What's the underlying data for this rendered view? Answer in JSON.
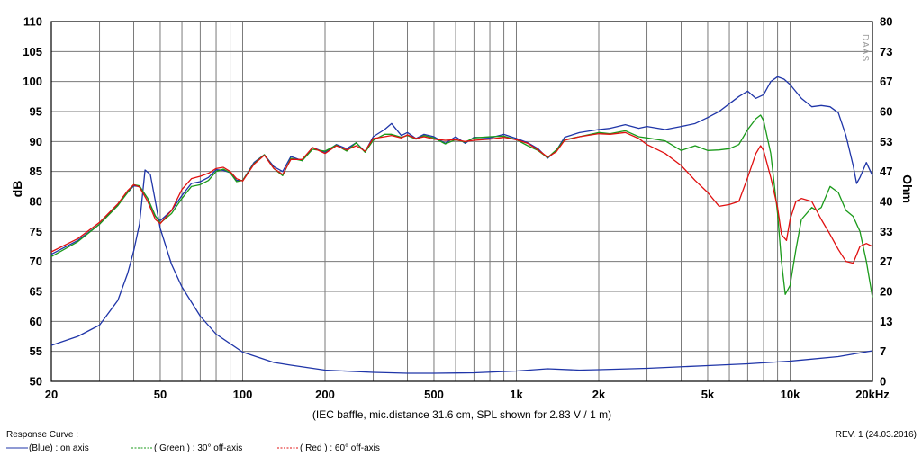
{
  "chart_data": {
    "type": "line",
    "caption": "(IEC baffle, mic.distance 31.6 cm, SPL shown for 2.83 V / 1 m)",
    "watermark": "DAAS",
    "x_axis": {
      "scale": "log",
      "range": [
        20,
        20000
      ],
      "tick_labels": [
        {
          "value": 20,
          "label": "20"
        },
        {
          "value": 50,
          "label": "50"
        },
        {
          "value": 100,
          "label": "100"
        },
        {
          "value": 200,
          "label": "200"
        },
        {
          "value": 500,
          "label": "500"
        },
        {
          "value": 1000,
          "label": "1k"
        },
        {
          "value": 2000,
          "label": "2k"
        },
        {
          "value": 5000,
          "label": "5k"
        },
        {
          "value": 10000,
          "label": "10k"
        },
        {
          "value": 20000,
          "label": "20kHz"
        }
      ]
    },
    "y_axis_left": {
      "label": "dB",
      "range": [
        50,
        110
      ],
      "ticks": [
        50,
        55,
        60,
        65,
        70,
        75,
        80,
        85,
        90,
        95,
        100,
        105,
        110
      ]
    },
    "y_axis_right": {
      "label": "Ohm",
      "range": [
        0,
        80
      ],
      "ticks": [
        "0",
        "7",
        "13",
        "20",
        "27",
        "33",
        "40",
        "47",
        "53",
        "60",
        "67",
        "73",
        "80"
      ]
    },
    "grid": true,
    "legend": {
      "title": "Response Curve :",
      "entries": [
        {
          "text": "(Blue)  : on axis",
          "color": "#1f35a8"
        },
        {
          "text": "( Green ) : 30° off-axis",
          "color": "#1a9a1a"
        },
        {
          "text": "( Red ) : 60° off-axis",
          "color": "#e01010"
        }
      ]
    },
    "revision": "REV. 1 (24.03.2016)",
    "series": [
      {
        "color": "#1f35a8",
        "axis": "dB",
        "points": [
          [
            20,
            71.2
          ],
          [
            25,
            73.5
          ],
          [
            30,
            76.2
          ],
          [
            35,
            79.5
          ],
          [
            38,
            81.5
          ],
          [
            40,
            82.6
          ],
          [
            42,
            82.5
          ],
          [
            45,
            80.5
          ],
          [
            48,
            77.5
          ],
          [
            50,
            76.8
          ],
          [
            55,
            78.5
          ],
          [
            60,
            81
          ],
          [
            65,
            83
          ],
          [
            70,
            83.3
          ],
          [
            75,
            84
          ],
          [
            80,
            85.3
          ],
          [
            85,
            85.2
          ],
          [
            90,
            84.8
          ],
          [
            95,
            83.5
          ],
          [
            100,
            83.5
          ],
          [
            110,
            86.5
          ],
          [
            120,
            87.8
          ],
          [
            130,
            85.8
          ],
          [
            140,
            85
          ],
          [
            150,
            87.5
          ],
          [
            165,
            86.8
          ],
          [
            180,
            89
          ],
          [
            200,
            88.2
          ],
          [
            220,
            89.5
          ],
          [
            240,
            88.8
          ],
          [
            260,
            89.8
          ],
          [
            280,
            88.3
          ],
          [
            300,
            90.8
          ],
          [
            330,
            92
          ],
          [
            350,
            93
          ],
          [
            380,
            91
          ],
          [
            400,
            91.5
          ],
          [
            430,
            90.5
          ],
          [
            460,
            91.2
          ],
          [
            500,
            90.8
          ],
          [
            550,
            89.7
          ],
          [
            600,
            90.8
          ],
          [
            650,
            89.7
          ],
          [
            700,
            90.7
          ],
          [
            800,
            90.6
          ],
          [
            900,
            91.2
          ],
          [
            1000,
            90.5
          ],
          [
            1100,
            89.8
          ],
          [
            1200,
            88.8
          ],
          [
            1300,
            87.2
          ],
          [
            1400,
            88.5
          ],
          [
            1500,
            90.7
          ],
          [
            1700,
            91.5
          ],
          [
            2000,
            92
          ],
          [
            2200,
            92.2
          ],
          [
            2500,
            92.8
          ],
          [
            2800,
            92.2
          ],
          [
            3000,
            92.5
          ],
          [
            3500,
            92
          ],
          [
            4000,
            92.5
          ],
          [
            4500,
            93
          ],
          [
            5000,
            94
          ],
          [
            5500,
            95
          ],
          [
            6000,
            96.3
          ],
          [
            6500,
            97.5
          ],
          [
            7000,
            98.4
          ],
          [
            7500,
            97.2
          ],
          [
            8000,
            97.8
          ],
          [
            8500,
            100
          ],
          [
            9000,
            100.8
          ],
          [
            9500,
            100.4
          ],
          [
            10000,
            99.5
          ],
          [
            11000,
            97.2
          ],
          [
            12000,
            95.8
          ],
          [
            13000,
            96
          ],
          [
            14000,
            95.8
          ],
          [
            15000,
            94.8
          ],
          [
            16000,
            91
          ],
          [
            17000,
            86
          ],
          [
            17500,
            83
          ],
          [
            18000,
            84
          ],
          [
            19000,
            86.5
          ],
          [
            20000,
            84.3
          ]
        ]
      },
      {
        "color": "#1f35a8",
        "axis": "Ohm",
        "points": [
          [
            20,
            8
          ],
          [
            25,
            10
          ],
          [
            30,
            12.5
          ],
          [
            35,
            18
          ],
          [
            38,
            24
          ],
          [
            40,
            29
          ],
          [
            42,
            35
          ],
          [
            44,
            47
          ],
          [
            46,
            46
          ],
          [
            48,
            40
          ],
          [
            50,
            34
          ],
          [
            55,
            26
          ],
          [
            60,
            21
          ],
          [
            70,
            14.5
          ],
          [
            80,
            10.5
          ],
          [
            100,
            6.5
          ],
          [
            130,
            4.2
          ],
          [
            150,
            3.6
          ],
          [
            200,
            2.5
          ],
          [
            300,
            2
          ],
          [
            400,
            1.8
          ],
          [
            500,
            1.8
          ],
          [
            700,
            1.9
          ],
          [
            1000,
            2.3
          ],
          [
            1300,
            2.8
          ],
          [
            1700,
            2.5
          ],
          [
            2000,
            2.6
          ],
          [
            3000,
            2.9
          ],
          [
            5000,
            3.5
          ],
          [
            7000,
            3.9
          ],
          [
            10000,
            4.5
          ],
          [
            15000,
            5.5
          ],
          [
            20000,
            6.8
          ]
        ]
      },
      {
        "color": "#1a9a1a",
        "axis": "dB",
        "points": [
          [
            20,
            70.8
          ],
          [
            25,
            73.3
          ],
          [
            30,
            76.2
          ],
          [
            35,
            79.3
          ],
          [
            38,
            81.5
          ],
          [
            40,
            82.8
          ],
          [
            42,
            82.6
          ],
          [
            45,
            80.5
          ],
          [
            48,
            77.6
          ],
          [
            50,
            76.4
          ],
          [
            55,
            78
          ],
          [
            60,
            80.5
          ],
          [
            65,
            82.5
          ],
          [
            70,
            82.8
          ],
          [
            75,
            83.5
          ],
          [
            80,
            85
          ],
          [
            85,
            85.4
          ],
          [
            90,
            84.8
          ],
          [
            95,
            83.3
          ],
          [
            100,
            83.5
          ],
          [
            110,
            86.3
          ],
          [
            120,
            87.8
          ],
          [
            130,
            85.5
          ],
          [
            140,
            84.3
          ],
          [
            150,
            87.2
          ],
          [
            165,
            86.8
          ],
          [
            180,
            88.7
          ],
          [
            200,
            88.4
          ],
          [
            220,
            89.4
          ],
          [
            240,
            88.4
          ],
          [
            260,
            89.8
          ],
          [
            280,
            88.2
          ],
          [
            300,
            90.2
          ],
          [
            330,
            91.2
          ],
          [
            350,
            91.2
          ],
          [
            380,
            90.7
          ],
          [
            400,
            91
          ],
          [
            430,
            90.4
          ],
          [
            460,
            91
          ],
          [
            500,
            90.6
          ],
          [
            550,
            89.6
          ],
          [
            600,
            90.3
          ],
          [
            650,
            89.9
          ],
          [
            700,
            90.6
          ],
          [
            800,
            90.8
          ],
          [
            900,
            90.9
          ],
          [
            1000,
            90.3
          ],
          [
            1100,
            89.3
          ],
          [
            1200,
            88.5
          ],
          [
            1300,
            87.3
          ],
          [
            1400,
            88.6
          ],
          [
            1500,
            90.3
          ],
          [
            1700,
            90.8
          ],
          [
            2000,
            91.5
          ],
          [
            2200,
            91.3
          ],
          [
            2500,
            91.8
          ],
          [
            2800,
            90.8
          ],
          [
            3000,
            90.6
          ],
          [
            3500,
            90.1
          ],
          [
            4000,
            88.5
          ],
          [
            4500,
            89.3
          ],
          [
            5000,
            88.5
          ],
          [
            5500,
            88.6
          ],
          [
            6000,
            88.8
          ],
          [
            6500,
            89.5
          ],
          [
            7000,
            92
          ],
          [
            7500,
            93.8
          ],
          [
            7800,
            94.4
          ],
          [
            8000,
            93.5
          ],
          [
            8500,
            88
          ],
          [
            9000,
            78
          ],
          [
            9300,
            70
          ],
          [
            9600,
            64.5
          ],
          [
            10000,
            66
          ],
          [
            10500,
            72
          ],
          [
            11000,
            77
          ],
          [
            12000,
            79
          ],
          [
            12500,
            78.5
          ],
          [
            13000,
            79
          ],
          [
            14000,
            82.5
          ],
          [
            15000,
            81.5
          ],
          [
            16000,
            78.5
          ],
          [
            17000,
            77.5
          ],
          [
            18000,
            75
          ],
          [
            19000,
            70
          ],
          [
            20000,
            64
          ]
        ]
      },
      {
        "color": "#e01010",
        "axis": "dB",
        "points": [
          [
            20,
            71.6
          ],
          [
            25,
            73.8
          ],
          [
            30,
            76.5
          ],
          [
            35,
            79.6
          ],
          [
            38,
            81.8
          ],
          [
            40,
            82.8
          ],
          [
            42,
            82.4
          ],
          [
            45,
            80
          ],
          [
            48,
            77
          ],
          [
            50,
            76.3
          ],
          [
            55,
            78.5
          ],
          [
            60,
            82
          ],
          [
            65,
            83.8
          ],
          [
            70,
            84.2
          ],
          [
            75,
            84.7
          ],
          [
            80,
            85.5
          ],
          [
            85,
            85.7
          ],
          [
            90,
            85
          ],
          [
            95,
            83.8
          ],
          [
            100,
            83.4
          ],
          [
            110,
            86.2
          ],
          [
            120,
            87.7
          ],
          [
            130,
            85.5
          ],
          [
            140,
            84.5
          ],
          [
            150,
            87
          ],
          [
            165,
            87
          ],
          [
            180,
            89
          ],
          [
            200,
            88
          ],
          [
            220,
            89.3
          ],
          [
            240,
            88.6
          ],
          [
            260,
            89.3
          ],
          [
            280,
            88.4
          ],
          [
            300,
            90.5
          ],
          [
            330,
            90.8
          ],
          [
            350,
            91
          ],
          [
            380,
            90.6
          ],
          [
            400,
            91.1
          ],
          [
            430,
            90.5
          ],
          [
            460,
            90.8
          ],
          [
            500,
            90.4
          ],
          [
            550,
            90.2
          ],
          [
            600,
            90.3
          ],
          [
            650,
            90
          ],
          [
            700,
            90.2
          ],
          [
            800,
            90.4
          ],
          [
            900,
            90.7
          ],
          [
            1000,
            90.3
          ],
          [
            1100,
            89.7
          ],
          [
            1200,
            88.6
          ],
          [
            1300,
            87.4
          ],
          [
            1400,
            88.3
          ],
          [
            1500,
            90.2
          ],
          [
            1700,
            90.8
          ],
          [
            2000,
            91.3
          ],
          [
            2200,
            91.2
          ],
          [
            2500,
            91.5
          ],
          [
            2800,
            90.5
          ],
          [
            3000,
            89.5
          ],
          [
            3500,
            88
          ],
          [
            4000,
            86
          ],
          [
            4500,
            83.5
          ],
          [
            5000,
            81.5
          ],
          [
            5500,
            79.2
          ],
          [
            6000,
            79.5
          ],
          [
            6500,
            80
          ],
          [
            7000,
            84
          ],
          [
            7500,
            88
          ],
          [
            7800,
            89.3
          ],
          [
            8000,
            88.5
          ],
          [
            8500,
            84
          ],
          [
            9000,
            79
          ],
          [
            9300,
            74.5
          ],
          [
            9700,
            73.5
          ],
          [
            10000,
            77
          ],
          [
            10500,
            80
          ],
          [
            11000,
            80.5
          ],
          [
            12000,
            80
          ],
          [
            13000,
            77
          ],
          [
            14000,
            74.5
          ],
          [
            15000,
            72
          ],
          [
            16000,
            70
          ],
          [
            17000,
            69.7
          ],
          [
            18000,
            72.5
          ],
          [
            19000,
            73
          ],
          [
            20000,
            72.5
          ]
        ]
      }
    ]
  }
}
